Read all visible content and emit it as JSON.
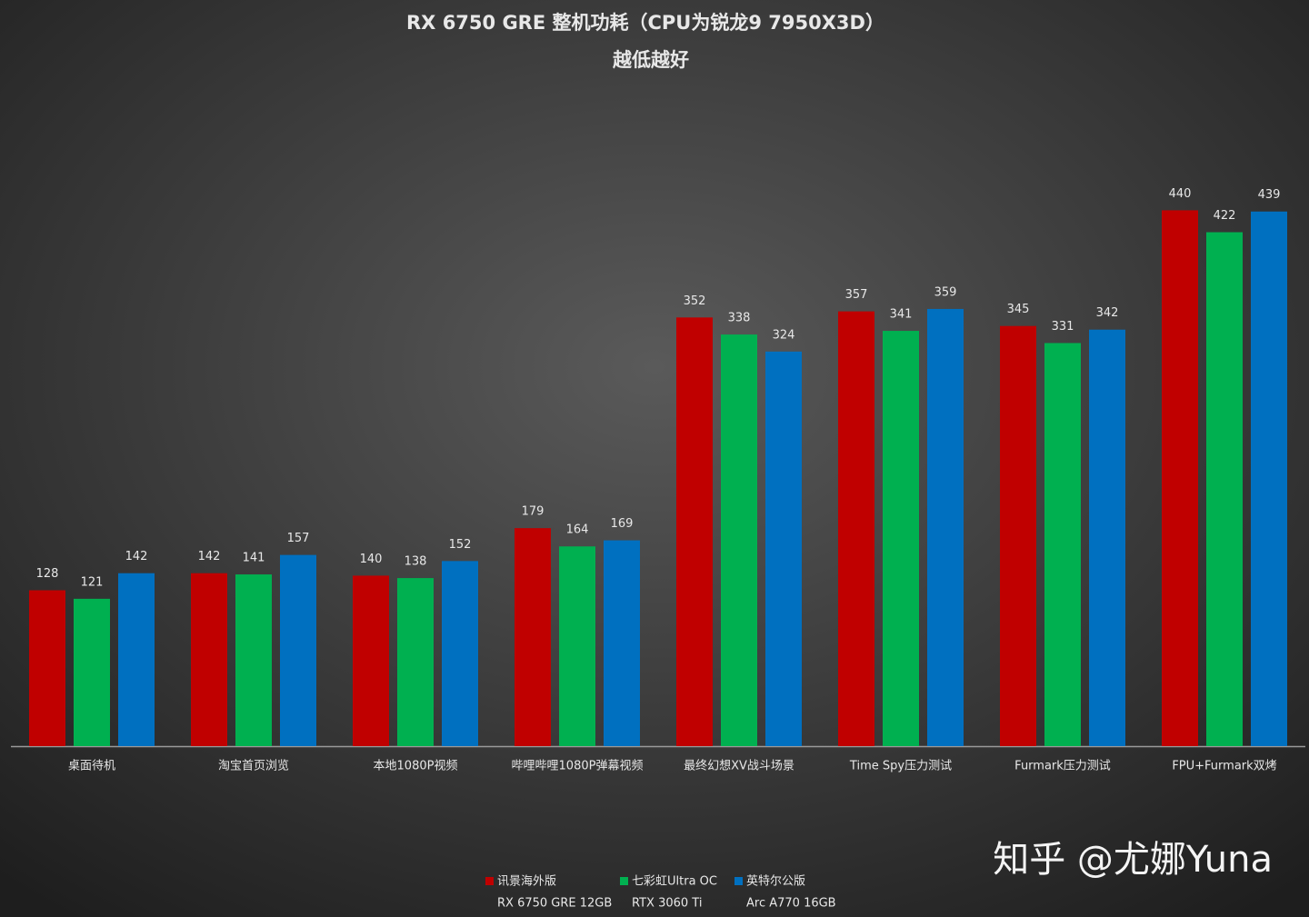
{
  "chart_data": {
    "type": "bar",
    "title": "RX 6750 GRE 整机功耗（CPU为锐龙9 7950X3D）",
    "subtitle": "越低越好",
    "categories": [
      "桌面待机",
      "淘宝首页浏览",
      "本地1080P视频",
      "哔哩哔哩1080P弹幕视频",
      "最终幻想XV战斗场景",
      "Time Spy压力测试",
      "Furmark压力测试",
      "FPU+Furmark双烤"
    ],
    "series": [
      {
        "name": "讯景海外版",
        "model": "RX 6750 GRE 12GB",
        "color": "#c00000",
        "values": [
          128,
          142,
          140,
          179,
          352,
          357,
          345,
          440
        ]
      },
      {
        "name": "七彩虹Ultra OC",
        "model": "RTX 3060 Ti",
        "color": "#00b050",
        "values": [
          121,
          141,
          138,
          164,
          338,
          341,
          331,
          422
        ]
      },
      {
        "name": "英特尔公版",
        "model": "Arc A770 16GB",
        "color": "#0070c0",
        "values": [
          142,
          157,
          152,
          169,
          324,
          359,
          342,
          439
        ]
      }
    ],
    "ylim": [
      0,
      500
    ],
    "watermark": "知乎 @尤娜Yuna"
  }
}
